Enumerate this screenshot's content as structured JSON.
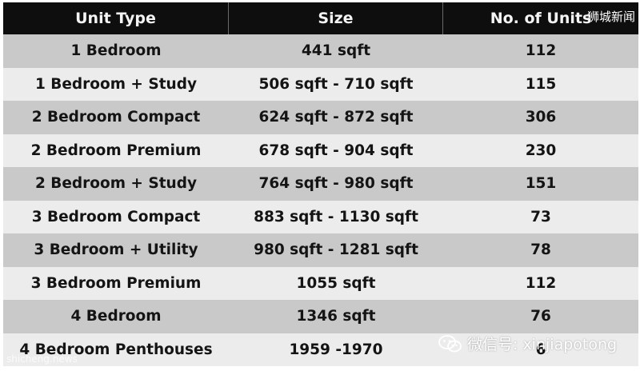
{
  "table": {
    "headers": [
      "Unit Type",
      "Size",
      "No. of Units"
    ],
    "rows": [
      {
        "unit_type": "1 Bedroom",
        "size": "441 sqft",
        "units": "112"
      },
      {
        "unit_type": "1 Bedroom + Study",
        "size": "506 sqft - 710 sqft",
        "units": "115"
      },
      {
        "unit_type": "2 Bedroom Compact",
        "size": "624 sqft - 872 sqft",
        "units": "306"
      },
      {
        "unit_type": "2 Bedroom Premium",
        "size": "678 sqft - 904 sqft",
        "units": "230"
      },
      {
        "unit_type": "2 Bedroom + Study",
        "size": "764 sqft - 980 sqft",
        "units": "151"
      },
      {
        "unit_type": "3 Bedroom Compact",
        "size": "883 sqft - 1130 sqft",
        "units": "73"
      },
      {
        "unit_type": "3 Bedroom + Utility",
        "size": "980 sqft - 1281 sqft",
        "units": "78"
      },
      {
        "unit_type": "3 Bedroom Premium",
        "size": "1055 sqft",
        "units": "112"
      },
      {
        "unit_type": "4 Bedroom",
        "size": "1346 sqft",
        "units": "76"
      },
      {
        "unit_type": "4 Bedroom Penthouses",
        "size": "1959 -1970",
        "units": "6"
      }
    ]
  },
  "watermarks": {
    "top_right": "狮城新闻",
    "bottom_right": "微信号: xinjiapotong",
    "bottom_left": "shicheng.news"
  },
  "colors": {
    "header_bg": "#0e0e0e",
    "row_dark": "#c9c9c9",
    "row_light": "#ececec"
  },
  "icons": {
    "wechat": "wechat-icon"
  }
}
